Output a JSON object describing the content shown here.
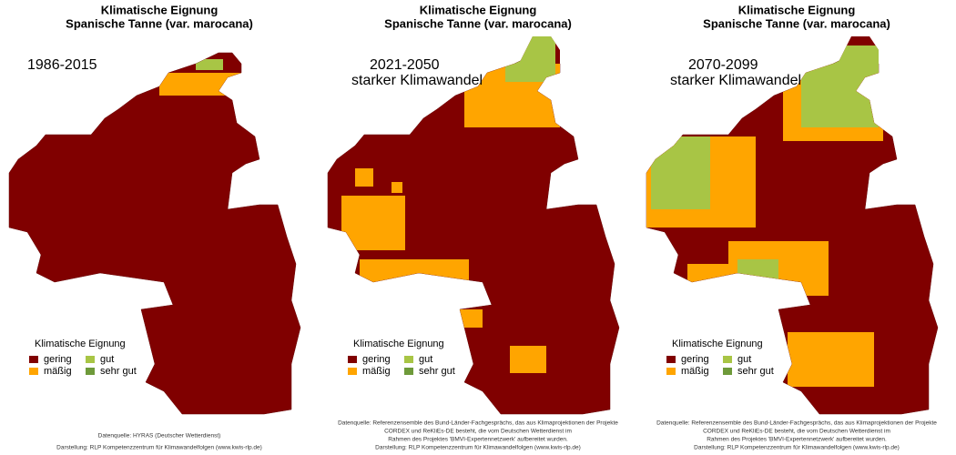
{
  "title": [
    "Klimatische Eignung",
    "Spanische Tanne (var. marocana)"
  ],
  "legend": {
    "title": "Klimatische Eignung",
    "items": [
      {
        "label": "gering",
        "color": "#800000"
      },
      {
        "label": "mäßig",
        "color": "#FFA500"
      },
      {
        "label": "gut",
        "color": "#A8C545"
      },
      {
        "label": "sehr gut",
        "color": "#6E9A3A"
      }
    ]
  },
  "panels": [
    {
      "period": [
        "1986-2015"
      ],
      "source": [
        "Datenquelle: HYRAS (Deutscher Wetterdienst)",
        "Darstellung: RLP Kompetenzzentrum für Klimawandelfolgen (www.kwis-rlp.de)"
      ]
    },
    {
      "period": [
        "2021-2050",
        "starker Klimawandel"
      ],
      "source": [
        "Datenquelle: Referenzensemble des Bund-Länder-Fachgesprächs, das aus Klimaprojektionen der Projekte",
        "CORDEX und ReKliEs-DE besteht, die vom Deutschen Wetterdienst im",
        "Rahmen des Projektes 'BMVI-Expertennetzwerk' aufbereitet wurden.",
        "Darstellung: RLP Kompetenzzentrum für Klimawandelfolgen (www.kwis-rlp.de)"
      ]
    },
    {
      "period": [
        "2070-2099",
        "starker Klimawandel"
      ],
      "source": [
        "Datenquelle: Referenzensemble des Bund-Länder-Fachgesprächs, das aus Klimaprojektionen der Projekte",
        "CORDEX und ReKliEs-DE besteht, die vom Deutschen Wetterdienst im",
        "Rahmen des Projektes 'BMVI-Expertennetzwerk' aufbereitet wurden.",
        "Darstellung: RLP Kompetenzzentrum für Klimawandelfolgen (www.kwis-rlp.de)"
      ]
    }
  ]
}
